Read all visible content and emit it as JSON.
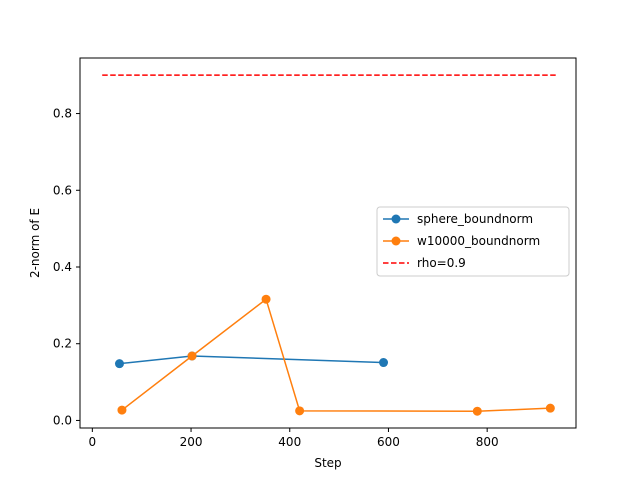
{
  "chart_data": {
    "type": "line",
    "xlabel": "Step",
    "ylabel": "2-norm of E",
    "xlim": [
      -25,
      980
    ],
    "ylim": [
      -0.0197,
      0.9448
    ],
    "xticks": [
      0,
      200,
      400,
      600,
      800
    ],
    "xtick_labels": [
      "0",
      "200",
      "400",
      "600",
      "800"
    ],
    "yticks": [
      0.0,
      0.2,
      0.4,
      0.6,
      0.8
    ],
    "ytick_labels": [
      "0.0",
      "0.2",
      "0.4",
      "0.6",
      "0.8"
    ],
    "grid": false,
    "legend_position": "center-right",
    "series": [
      {
        "name": "sphere_boundnorm",
        "color": "#1f77b4",
        "style": "solid",
        "marker": "circle",
        "x": [
          55,
          202,
          590
        ],
        "y": [
          0.148,
          0.168,
          0.151
        ]
      },
      {
        "name": "w10000_boundnorm",
        "color": "#ff7f0e",
        "style": "solid",
        "marker": "circle",
        "x": [
          60,
          202,
          352,
          420,
          780,
          928
        ],
        "y": [
          0.027,
          0.168,
          0.316,
          0.025,
          0.024,
          0.032
        ]
      },
      {
        "name": "rho=0.9",
        "color": "#ff0000",
        "style": "dashed",
        "marker": "none",
        "x": [
          20,
          940
        ],
        "y": [
          0.9,
          0.9
        ]
      }
    ]
  }
}
